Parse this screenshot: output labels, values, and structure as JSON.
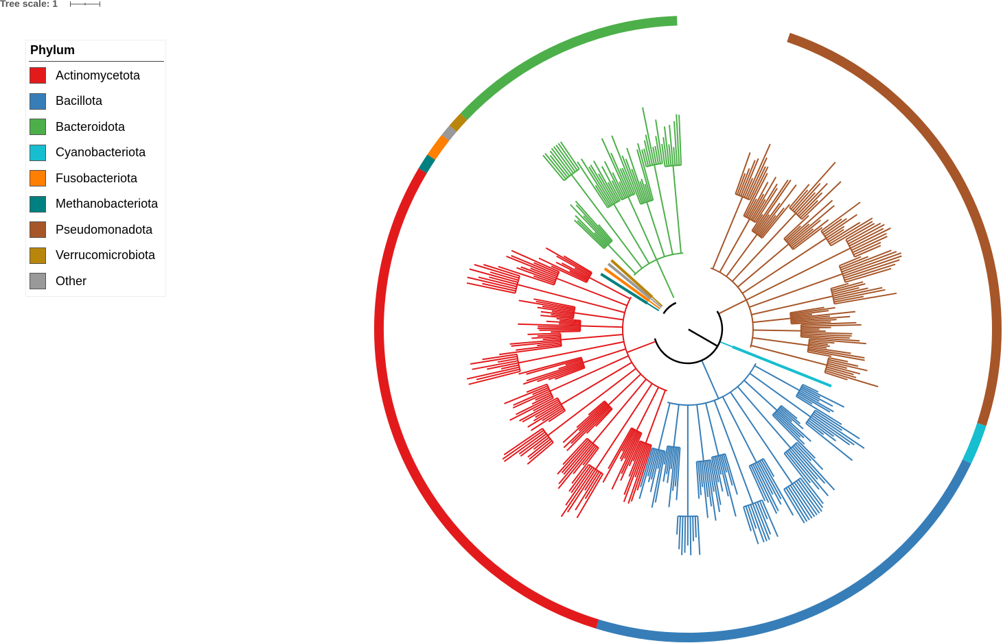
{
  "tree_scale": {
    "label": "Tree scale: 1"
  },
  "legend": {
    "title": "Phylum",
    "items": [
      {
        "label": "Actinomycetota",
        "color": "#e31a1c"
      },
      {
        "label": "Bacillota",
        "color": "#377eb8"
      },
      {
        "label": "Bacteroidota",
        "color": "#4daf4a"
      },
      {
        "label": "Cyanobacteriota",
        "color": "#17becf"
      },
      {
        "label": "Fusobacteriota",
        "color": "#ff7f00"
      },
      {
        "label": "Methanobacteriota",
        "color": "#008080"
      },
      {
        "label": "Pseudomonadota",
        "color": "#a65628"
      },
      {
        "label": "Verrucomicrobiota",
        "color": "#b8860b"
      },
      {
        "label": "Other",
        "color": "#999999"
      }
    ]
  },
  "tree": {
    "layout": "circular",
    "backbone_color": "#000000",
    "clades": [
      {
        "phylum": "Pseudomonadota",
        "color": "#a65628",
        "leaves": 120
      },
      {
        "phylum": "Cyanobacteriota",
        "color": "#17becf",
        "leaves": 10
      },
      {
        "phylum": "Bacillota",
        "color": "#377eb8",
        "leaves": 110
      },
      {
        "phylum": "Actinomycetota",
        "color": "#e31a1c",
        "leaves": 140
      },
      {
        "phylum": "Methanobacteriota",
        "color": "#008080",
        "leaves": 4
      },
      {
        "phylum": "Fusobacteriota",
        "color": "#ff7f00",
        "leaves": 6
      },
      {
        "phylum": "Other",
        "color": "#999999",
        "leaves": 3
      },
      {
        "phylum": "Verrucomicrobiota",
        "color": "#b8860b",
        "leaves": 4
      },
      {
        "phylum": "Bacteroidota",
        "color": "#4daf4a",
        "leaves": 60
      }
    ]
  }
}
